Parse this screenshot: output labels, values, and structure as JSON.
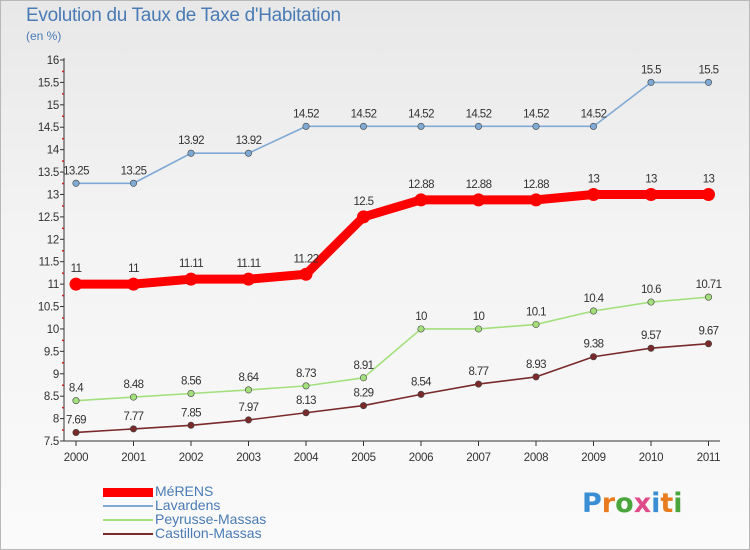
{
  "title": "Evolution du Taux de Taxe d'Habitation",
  "subtitle": "(en %)",
  "logo": {
    "text": "Proxiti",
    "letter_colors": [
      "#3a8ed4",
      "#e87c1e",
      "#4aa53c",
      "#e04b8a",
      "#3a8ed4",
      "#e87c1e",
      "#4aa53c"
    ]
  },
  "chart_data": {
    "type": "line",
    "categories": [
      "2000",
      "2001",
      "2002",
      "2003",
      "2004",
      "2005",
      "2006",
      "2007",
      "2008",
      "2009",
      "2010",
      "2011"
    ],
    "ylim": [
      7.5,
      16
    ],
    "yticks": [
      "7.5",
      "8",
      "8.5",
      "9",
      "9.5",
      "10",
      "10.5",
      "11",
      "11.5",
      "12",
      "12.5",
      "13",
      "13.5",
      "14",
      "14.5",
      "15",
      "15.5",
      "16"
    ],
    "grid": false,
    "legend_position": "bottom-left",
    "series": [
      {
        "name": "MéRENS",
        "color": "#ff0000",
        "values": [
          11,
          11,
          11.11,
          11.11,
          11.22,
          12.5,
          12.88,
          12.88,
          12.88,
          13,
          13,
          13
        ],
        "labels": [
          "11",
          "11",
          "11.11",
          "11.11",
          "11.22",
          "12.5",
          "12.88",
          "12.88",
          "12.88",
          "13",
          "13",
          "13"
        ]
      },
      {
        "name": "Lavardens",
        "color": "#7faad6",
        "values": [
          13.25,
          13.25,
          13.92,
          13.92,
          14.52,
          14.52,
          14.52,
          14.52,
          14.52,
          14.52,
          15.5,
          15.5
        ],
        "labels": [
          "13.25",
          "13.25",
          "13.92",
          "13.92",
          "14.52",
          "14.52",
          "14.52",
          "14.52",
          "14.52",
          "14.52",
          "15.5",
          "15.5"
        ]
      },
      {
        "name": "Peyrusse-Massas",
        "color": "#a3e07c",
        "values": [
          8.4,
          8.48,
          8.56,
          8.64,
          8.73,
          8.91,
          10,
          10,
          10.1,
          10.4,
          10.6,
          10.71
        ],
        "labels": [
          "8.4",
          "8.48",
          "8.56",
          "8.64",
          "8.73",
          "8.91",
          "10",
          "10",
          "10.1",
          "10.4",
          "10.6",
          "10.71"
        ]
      },
      {
        "name": "Castillon-Massas",
        "color": "#7a2a2a",
        "values": [
          7.69,
          7.77,
          7.85,
          7.97,
          8.13,
          8.29,
          8.54,
          8.77,
          8.93,
          9.38,
          9.57,
          9.67
        ],
        "labels": [
          "7.69",
          "7.77",
          "7.85",
          "7.97",
          "8.13",
          "8.29",
          "8.54",
          "8.77",
          "8.93",
          "9.38",
          "9.57",
          "9.67"
        ]
      }
    ]
  }
}
